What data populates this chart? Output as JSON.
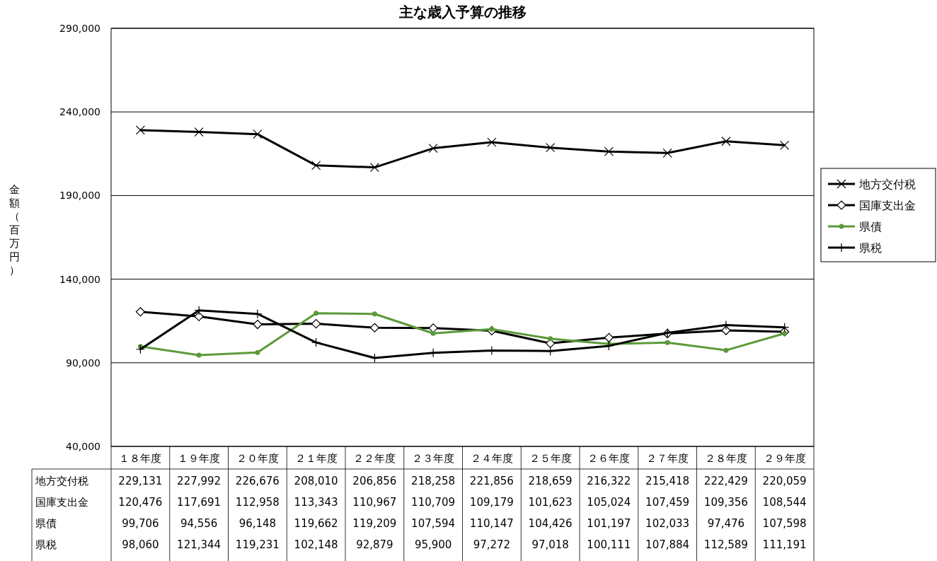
{
  "chart_data": {
    "type": "line",
    "title": "主な歳入予算の推移",
    "ylabel": "金額（百万円）",
    "categories": [
      "１８年度",
      "１９年度",
      "２０年度",
      "２１年度",
      "２２年度",
      "２３年度",
      "２４年度",
      "２５年度",
      "２６年度",
      "２７年度",
      "２８年度",
      "２９年度"
    ],
    "series": [
      {
        "name": "地方交付税",
        "color": "#000000",
        "marker": "cross",
        "values": [
          229131,
          227992,
          226676,
          208010,
          206856,
          218258,
          221856,
          218659,
          216322,
          215418,
          222429,
          220059
        ],
        "value_labels": [
          "229,131",
          "227,992",
          "226,676",
          "208,010",
          "206,856",
          "218,258",
          "221,856",
          "218,659",
          "216,322",
          "215,418",
          "222,429",
          "220,059"
        ]
      },
      {
        "name": "国庫支出金",
        "color": "#000000",
        "marker": "diamond",
        "values": [
          120476,
          117691,
          112958,
          113343,
          110967,
          110709,
          109179,
          101623,
          105024,
          107459,
          109356,
          108544
        ],
        "value_labels": [
          "120,476",
          "117,691",
          "112,958",
          "113,343",
          "110,967",
          "110,709",
          "109,179",
          "101,623",
          "105,024",
          "107,459",
          "109,356",
          "108,544"
        ]
      },
      {
        "name": "県債",
        "color": "#5b9a3a",
        "marker": "circle",
        "values": [
          99706,
          94556,
          96148,
          119662,
          119209,
          107594,
          110147,
          104426,
          101197,
          102033,
          97476,
          107598
        ],
        "value_labels": [
          "99,706",
          "94,556",
          "96,148",
          "119,662",
          "119,209",
          "107,594",
          "110,147",
          "104,426",
          "101,197",
          "102,033",
          "97,476",
          "107,598"
        ]
      },
      {
        "name": "県税",
        "color": "#000000",
        "marker": "plus",
        "values": [
          98060,
          121344,
          119231,
          102148,
          92879,
          95900,
          97272,
          97018,
          100111,
          107884,
          112589,
          111191
        ],
        "value_labels": [
          "98,060",
          "121,344",
          "119,231",
          "102,148",
          "92,879",
          "95,900",
          "97,272",
          "97,018",
          "100,111",
          "107,884",
          "112,589",
          "111,191"
        ]
      }
    ],
    "ylim": [
      40000,
      290000
    ],
    "yticks": [
      {
        "value": 40000,
        "label": "40,000"
      },
      {
        "value": 90000,
        "label": "90,000"
      },
      {
        "value": 140000,
        "label": "140,000"
      },
      {
        "value": 190000,
        "label": "190,000"
      },
      {
        "value": 240000,
        "label": "240,000"
      },
      {
        "value": 290000,
        "label": "290,000"
      }
    ],
    "grid": "y",
    "legend": "right"
  }
}
